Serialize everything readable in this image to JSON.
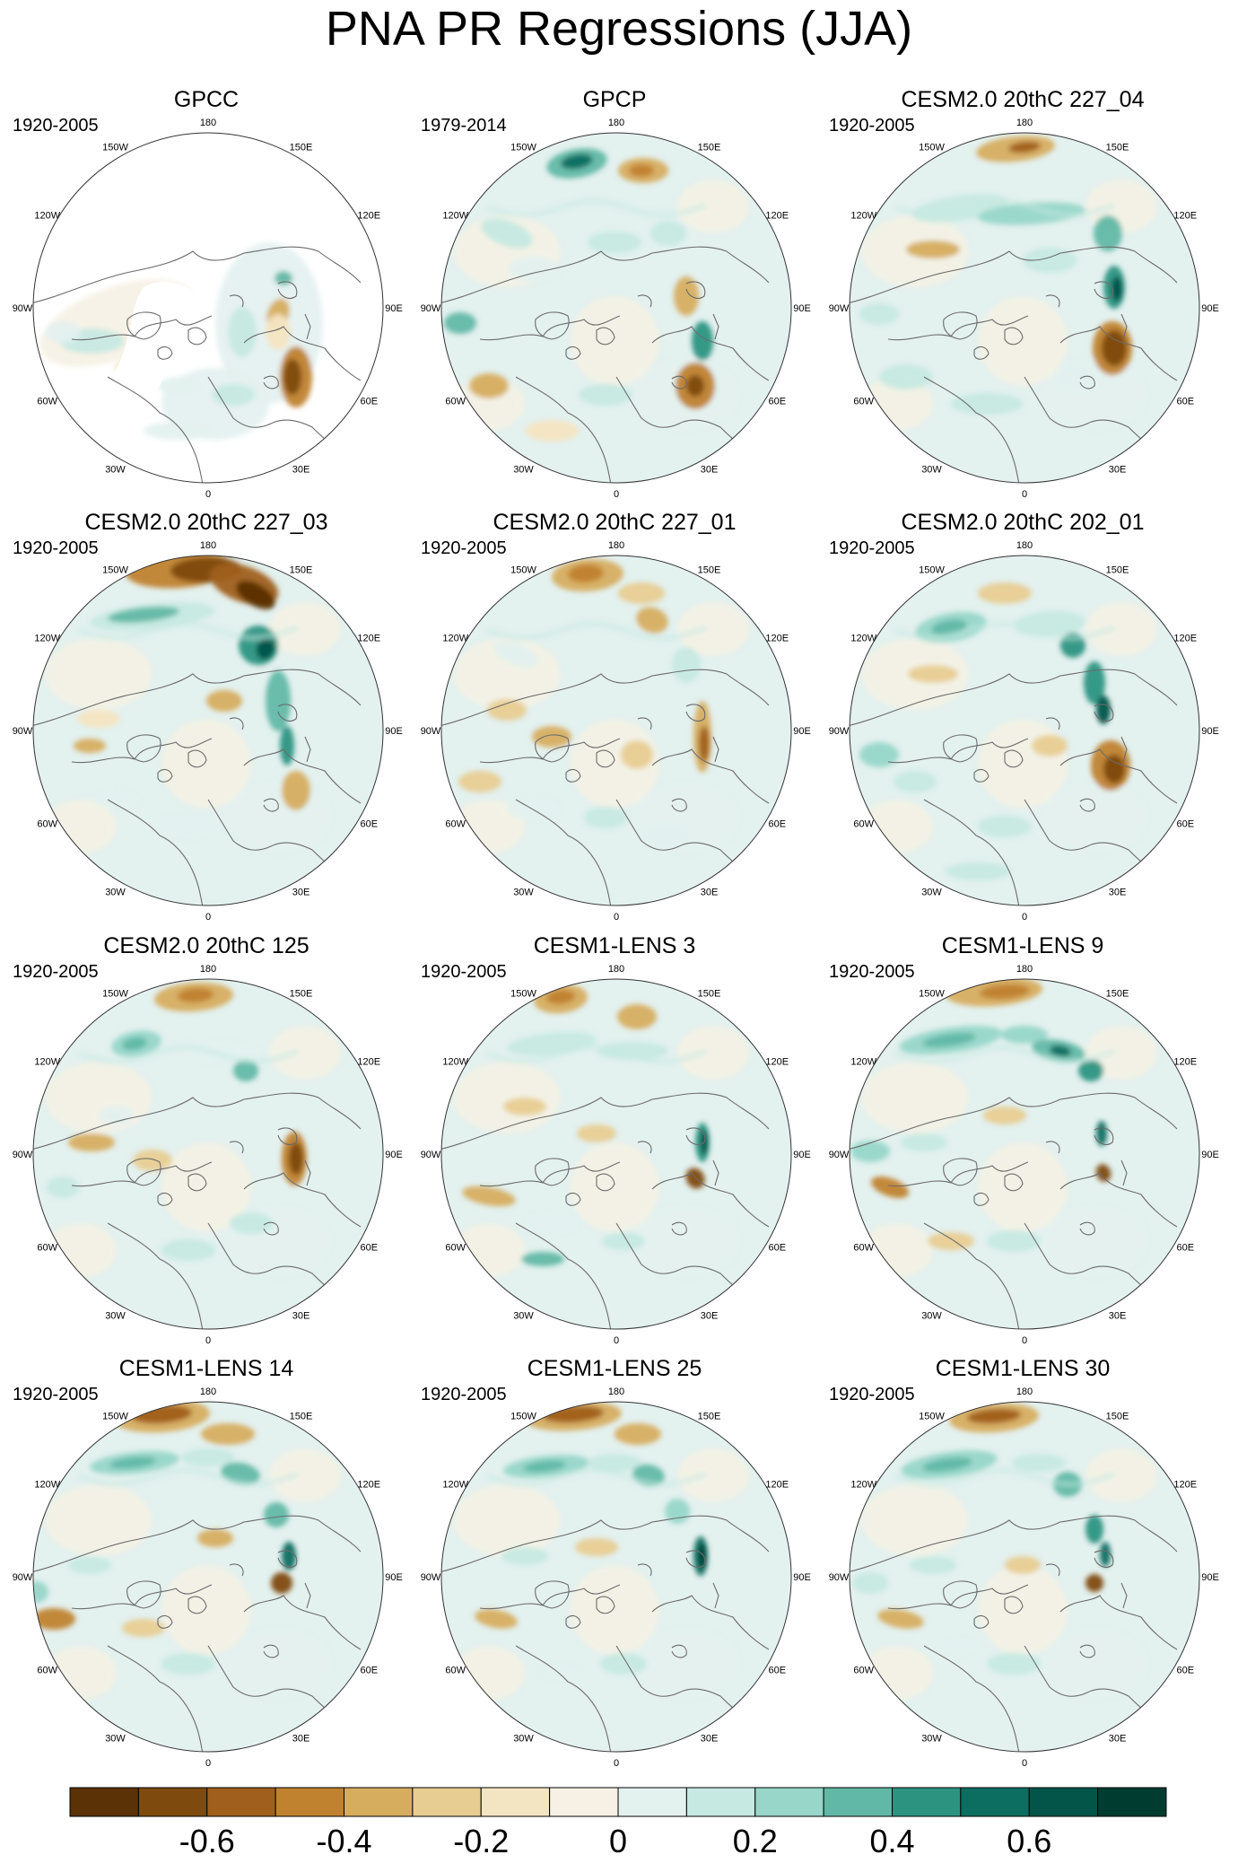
{
  "title": "PNA PR Regressions (JJA)",
  "colors": {
    "scale": [
      "#5a3205",
      "#7e4a0e",
      "#a05f1c",
      "#c0822f",
      "#d6ad5f",
      "#e8cd92",
      "#f4e5c2",
      "#f6f1e4",
      "#e3f1ef",
      "#c6e9e2",
      "#97d6c9",
      "#62b8a6",
      "#2c9381",
      "#0c6e60",
      "#035449",
      "#003c30"
    ],
    "coast": "#6b6b6b",
    "frame": "#333333"
  },
  "lon_labels": [
    "180",
    "150E",
    "120E",
    "90E",
    "60E",
    "30E",
    "0",
    "30W",
    "60W",
    "90W",
    "120W",
    "150W"
  ],
  "panels": [
    {
      "title": "GPCC",
      "period": "1920-2005"
    },
    {
      "title": "GPCP",
      "period": "1979-2014"
    },
    {
      "title": "CESM2.0 20thC 227_04",
      "period": "1920-2005"
    },
    {
      "title": "CESM2.0 20thC 227_03",
      "period": "1920-2005"
    },
    {
      "title": "CESM2.0 20thC 227_01",
      "period": "1920-2005"
    },
    {
      "title": "CESM2.0 20thC 202_01",
      "period": "1920-2005"
    },
    {
      "title": "CESM2.0 20thC 125",
      "period": "1920-2005"
    },
    {
      "title": "CESM1-LENS 3",
      "period": "1920-2005"
    },
    {
      "title": "CESM1-LENS 9",
      "period": "1920-2005"
    },
    {
      "title": "CESM1-LENS 14",
      "period": "1920-2005"
    },
    {
      "title": "CESM1-LENS 25",
      "period": "1920-2005"
    },
    {
      "title": "CESM1-LENS 30",
      "period": "1920-2005"
    }
  ],
  "colorbar": {
    "labels": [
      "-0.6",
      "-0.4",
      "-0.2",
      "0",
      "0.2",
      "0.4",
      "0.6"
    ]
  }
}
